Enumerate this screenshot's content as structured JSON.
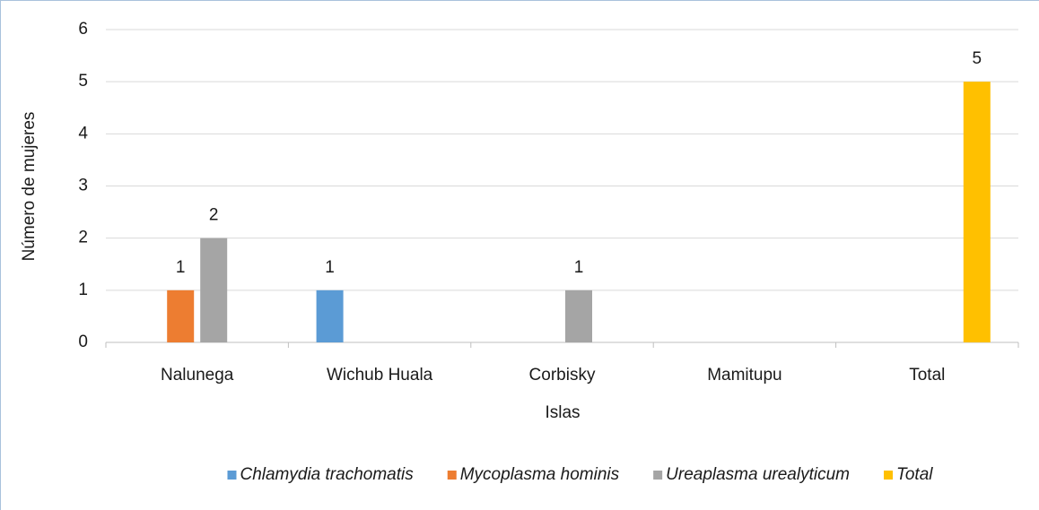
{
  "chart_data": {
    "type": "bar",
    "x_label": "Islas",
    "y_label": "Número de mujeres",
    "categories": [
      "Nalunega",
      "Wichub Huala",
      "Corbisky",
      "Mamitupu",
      "Total"
    ],
    "series": [
      {
        "name": "Chlamydia trachomatis",
        "color": "#5b9bd5",
        "values": [
          null,
          1,
          null,
          null,
          null
        ]
      },
      {
        "name": "Mycoplasma hominis",
        "color": "#ed7d31",
        "values": [
          1,
          null,
          null,
          null,
          null
        ]
      },
      {
        "name": "Ureaplasma urealyticum",
        "color": "#a5a5a5",
        "values": [
          2,
          null,
          1,
          null,
          null
        ]
      },
      {
        "name": "Total",
        "color": "#ffc000",
        "values": [
          null,
          null,
          null,
          null,
          5
        ]
      }
    ],
    "ylim": [
      0,
      6
    ],
    "yticks": [
      0,
      1,
      2,
      3,
      4,
      5,
      6
    ],
    "grid": true,
    "legend": "bottom"
  }
}
